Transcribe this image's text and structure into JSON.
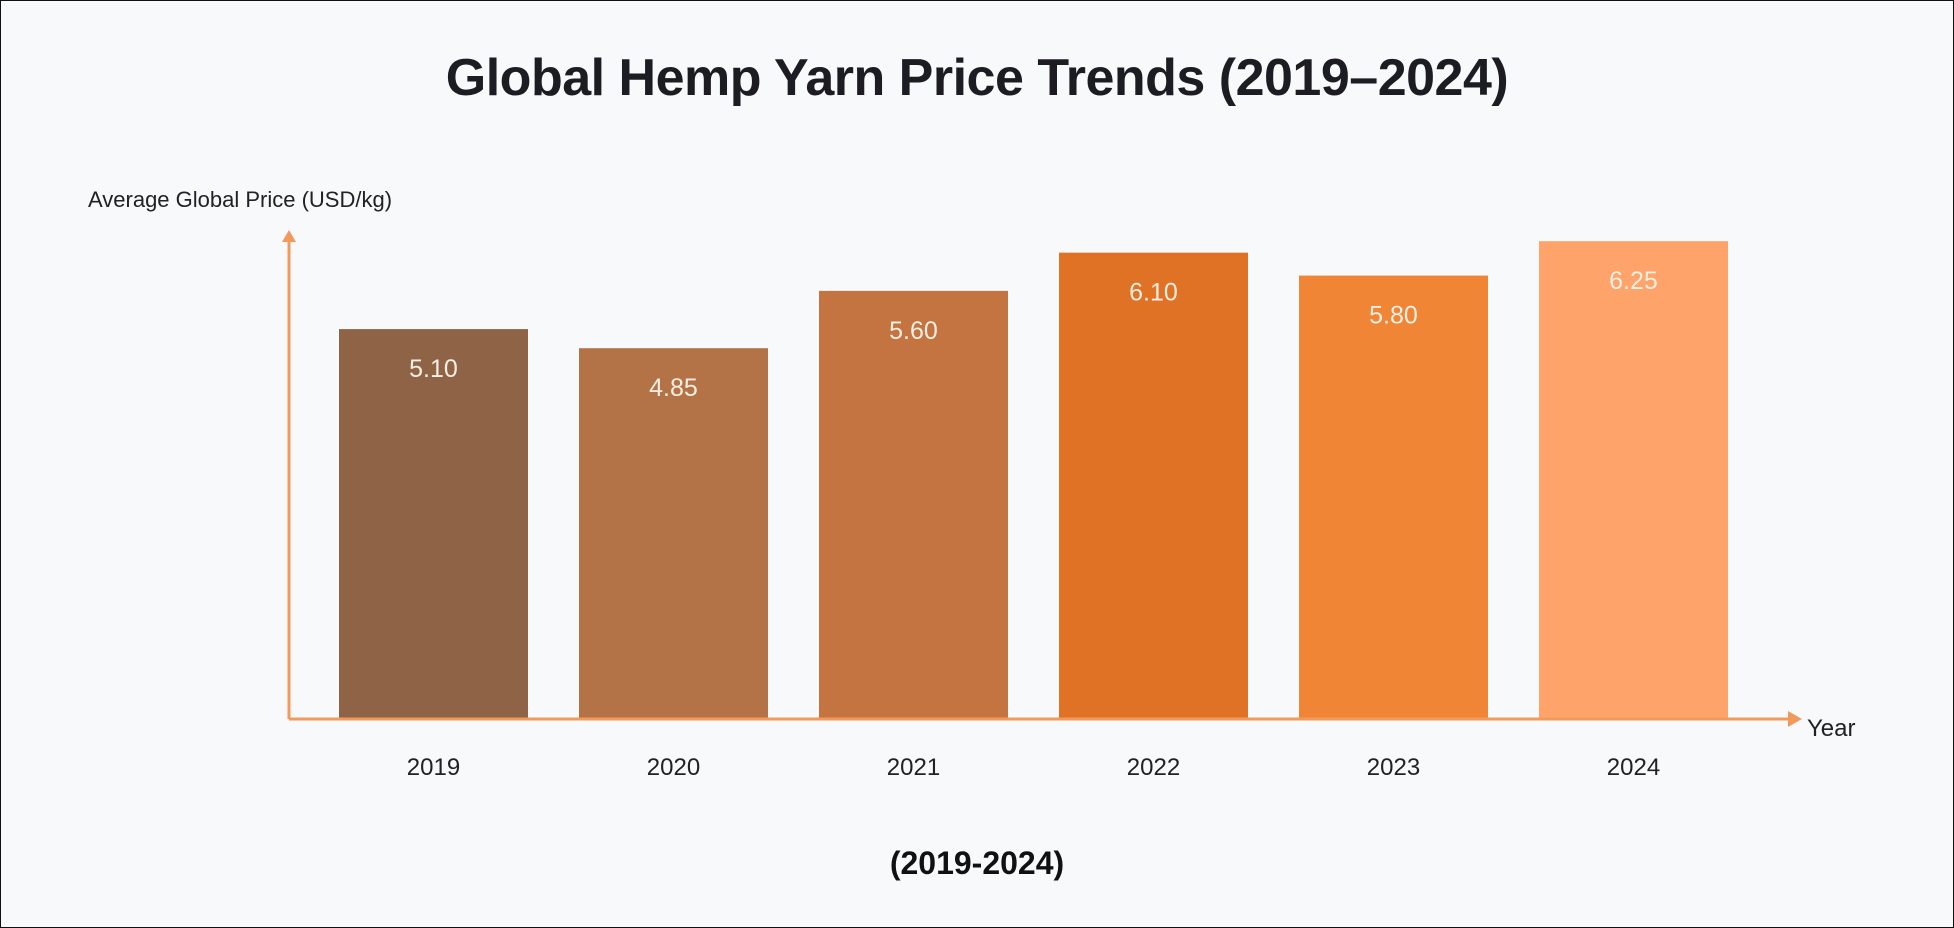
{
  "chart_data": {
    "type": "bar",
    "title": "Global Hemp Yarn Price Trends (2019–2024)",
    "subtitle": "(2019-2024)",
    "xlabel": "Year",
    "ylabel": "Average Global Price (USD/kg)",
    "categories": [
      "2019",
      "2020",
      "2021",
      "2022",
      "2023",
      "2024"
    ],
    "values": [
      5.1,
      4.85,
      5.6,
      6.1,
      5.8,
      6.25
    ],
    "data_labels": [
      "5.10",
      "4.85",
      "5.60",
      "6.10",
      "5.80",
      "6.25"
    ],
    "colors": [
      "#8f6446",
      "#b37347",
      "#c47440",
      "#e07226",
      "#f08535",
      "#fea46a"
    ],
    "axis_color": "#f29a5c",
    "ylim": [
      0,
      6.37
    ],
    "grid": false,
    "legend": "none"
  }
}
